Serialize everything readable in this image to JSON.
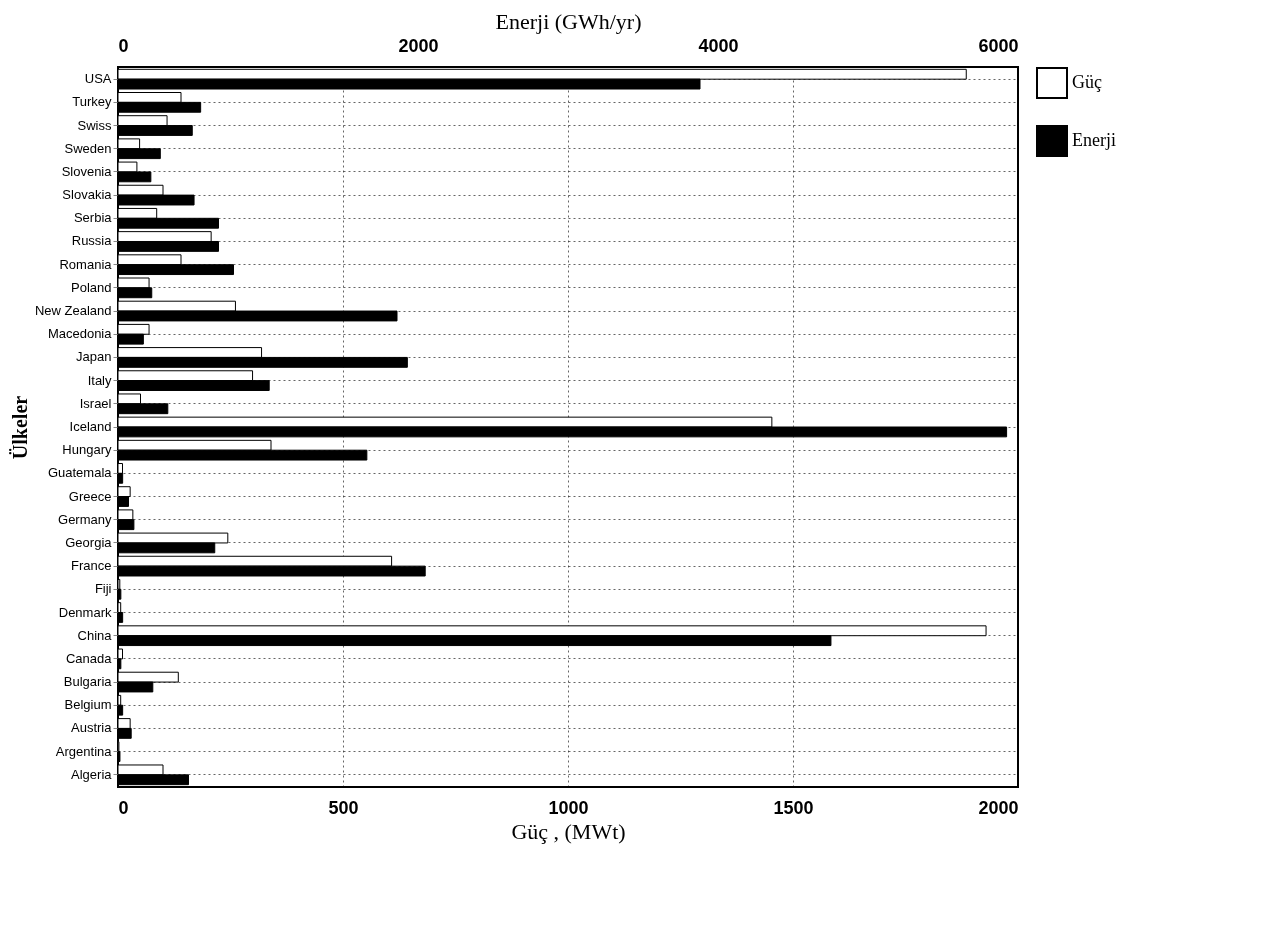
{
  "chart_data": {
    "type": "bar",
    "orientation": "horizontal",
    "xlabel": "Güç , (MWt)",
    "x2label": "Enerji (GWh/yr)",
    "ylabel": "Ülkeler",
    "categories": [
      "USA",
      "Turkey",
      "Swiss",
      "Sweden",
      "Slovenia",
      "Slovakia",
      "Serbia",
      "Russia",
      "Romania",
      "Poland",
      "New Zealand",
      "Macedonia",
      "Japan",
      "Italy",
      "Israel",
      "Iceland",
      "Hungary",
      "Guatemala",
      "Greece",
      "Germany",
      "Georgia",
      "France",
      "Fiji",
      "Denmark",
      "China",
      "Canada",
      "Bulgaria",
      "Belgium",
      "Austria",
      "Argentina",
      "Algeria"
    ],
    "series": [
      {
        "name": "Güç",
        "color": "#ffffff",
        "values": [
          1885,
          140,
          109,
          48,
          42,
          100,
          86,
          207,
          140,
          69,
          261,
          69,
          319,
          299,
          50,
          1453,
          340,
          10,
          27,
          33,
          244,
          608,
          4,
          6,
          1929,
          10,
          134,
          6,
          27,
          2,
          100
        ]
      },
      {
        "name": "Enerji",
        "color": "#000000",
        "axis": "x2",
        "values": [
          3880,
          551,
          495,
          282,
          219,
          507,
          670,
          670,
          770,
          225,
          1860,
          169,
          1929,
          1008,
          332,
          5924,
          1659,
          31,
          70,
          106,
          645,
          2048,
          19,
          31,
          4753,
          19,
          232,
          31,
          88,
          13,
          470
        ]
      }
    ],
    "xlim": [
      0,
      2000
    ],
    "xticks": [
      0,
      500,
      1000,
      1500,
      2000
    ],
    "x2lim": [
      0,
      6000
    ],
    "x2ticks": [
      0,
      2000,
      4000,
      6000
    ],
    "grid": true,
    "legend": "right"
  }
}
